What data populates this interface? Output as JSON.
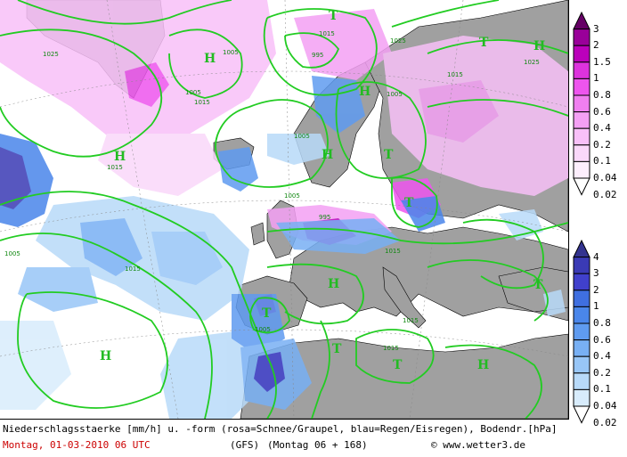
{
  "map": {
    "high_label": "H",
    "low_label": "T",
    "isobar_labels": [
      "1025",
      "1005",
      "1015",
      "995",
      "1005",
      "1015",
      "1005",
      "1015",
      "1025",
      "1005",
      "995",
      "1015",
      "1005",
      "1015",
      "1005",
      "1015",
      "1015",
      "1005",
      "1025",
      "1015"
    ]
  },
  "legend": {
    "snow_ticks": [
      "3",
      "2",
      "1.5",
      "1",
      "0.8",
      "0.6",
      "0.4",
      "0.2",
      "0.1",
      "0.04",
      "0.02"
    ],
    "rain_ticks": [
      "4",
      "3",
      "2",
      "1",
      "0.8",
      "0.6",
      "0.4",
      "0.2",
      "0.1",
      "0.04",
      "0.02"
    ],
    "colors": {
      "snow": [
        "#660066",
        "#990099",
        "#bb00bb",
        "#dd33dd",
        "#ee55ee",
        "#f07ff0",
        "#f4a0f4",
        "#f8c0f8",
        "#fad8fa",
        "#fdeefd",
        "#ffffff"
      ],
      "rain": [
        "#33338f",
        "#3a3ab5",
        "#4040cc",
        "#3f6fe0",
        "#4a86ea",
        "#5f9bf0",
        "#78b0f4",
        "#98c6f7",
        "#b8daf9",
        "#d8ecfc",
        "#ffffff"
      ]
    }
  },
  "footer": {
    "line1": "Niederschlagsstaerke [mm/h] u. -form (rosa=Schnee/Graupel, blau=Regen/Eisregen), Bodendr.[hPa]",
    "date": "Montag, 01-03-2010  06 UTC",
    "model": "(GFS)",
    "forecast": "(Montag 06 + 168)",
    "site": "© www.wetter3.de"
  }
}
